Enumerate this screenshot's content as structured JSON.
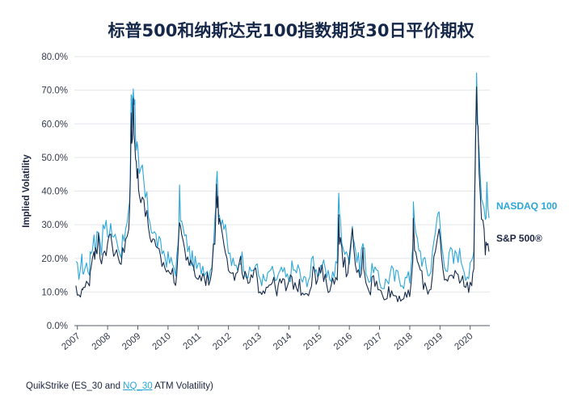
{
  "title": "标普500和纳斯达克100指数期货30日平价期权",
  "source": {
    "prefix": "QuikStrike (ES_30 and ",
    "highlight": "NQ_30",
    "suffix": " ATM Volatility)"
  },
  "colors": {
    "nasdaq": "#2aa6d9",
    "sp500": "#152a4a",
    "grid": "#e3e6ea",
    "axis": "#555c6a"
  },
  "chart_data": {
    "type": "line",
    "title": "标普500和纳斯达克100指数期货30日平价期权",
    "xlabel": "",
    "ylabel": "Implied Volatility",
    "x_tick_labels": [
      "2007",
      "2008",
      "2009",
      "2010",
      "2011",
      "2012",
      "2013",
      "2014",
      "2015",
      "2016",
      "2017",
      "2018",
      "2019",
      "2020"
    ],
    "y_tick_labels": [
      "0.0%",
      "10.0%",
      "20.0%",
      "30.0%",
      "40.0%",
      "50.0%",
      "60.0%",
      "70.0%",
      "80.0%"
    ],
    "xlim": [
      2006.9,
      2020.65
    ],
    "ylim": [
      0,
      80
    ],
    "grid": true,
    "legend": "right, inline labels at series ends",
    "series": [
      {
        "name": "NASDAQ 100",
        "color": "#2aa6d9",
        "points": [
          [
            2006.95,
            17
          ],
          [
            2007.05,
            16
          ],
          [
            2007.15,
            19
          ],
          [
            2007.2,
            16
          ],
          [
            2007.3,
            18
          ],
          [
            2007.4,
            17
          ],
          [
            2007.45,
            22
          ],
          [
            2007.55,
            27
          ],
          [
            2007.6,
            24
          ],
          [
            2007.7,
            29
          ],
          [
            2007.8,
            24
          ],
          [
            2007.9,
            31
          ],
          [
            2008.0,
            27
          ],
          [
            2008.1,
            30
          ],
          [
            2008.2,
            25
          ],
          [
            2008.3,
            28
          ],
          [
            2008.4,
            22
          ],
          [
            2008.5,
            24
          ],
          [
            2008.6,
            28
          ],
          [
            2008.7,
            32
          ],
          [
            2008.75,
            45
          ],
          [
            2008.78,
            70
          ],
          [
            2008.82,
            60
          ],
          [
            2008.85,
            74
          ],
          [
            2008.9,
            65
          ],
          [
            2008.95,
            55
          ],
          [
            2009.0,
            50
          ],
          [
            2009.05,
            42
          ],
          [
            2009.15,
            46
          ],
          [
            2009.25,
            38
          ],
          [
            2009.35,
            34
          ],
          [
            2009.45,
            30
          ],
          [
            2009.55,
            27
          ],
          [
            2009.65,
            25
          ],
          [
            2009.75,
            23
          ],
          [
            2009.85,
            22
          ],
          [
            2009.95,
            20
          ],
          [
            2010.05,
            19
          ],
          [
            2010.15,
            18
          ],
          [
            2010.25,
            17
          ],
          [
            2010.33,
            22
          ],
          [
            2010.38,
            38
          ],
          [
            2010.45,
            30
          ],
          [
            2010.55,
            26
          ],
          [
            2010.65,
            24
          ],
          [
            2010.75,
            20
          ],
          [
            2010.85,
            19
          ],
          [
            2010.95,
            17
          ],
          [
            2011.05,
            17
          ],
          [
            2011.15,
            18
          ],
          [
            2011.25,
            17
          ],
          [
            2011.35,
            16
          ],
          [
            2011.45,
            19
          ],
          [
            2011.55,
            30
          ],
          [
            2011.6,
            46
          ],
          [
            2011.65,
            38
          ],
          [
            2011.7,
            34
          ],
          [
            2011.8,
            32
          ],
          [
            2011.9,
            27
          ],
          [
            2012.0,
            22
          ],
          [
            2012.1,
            19
          ],
          [
            2012.2,
            17
          ],
          [
            2012.3,
            18
          ],
          [
            2012.4,
            21
          ],
          [
            2012.5,
            19
          ],
          [
            2012.6,
            16
          ],
          [
            2012.7,
            15
          ],
          [
            2012.8,
            17
          ],
          [
            2012.9,
            18
          ],
          [
            2013.0,
            15
          ],
          [
            2013.1,
            14
          ],
          [
            2013.2,
            13
          ],
          [
            2013.3,
            14
          ],
          [
            2013.4,
            17
          ],
          [
            2013.5,
            14
          ],
          [
            2013.6,
            14
          ],
          [
            2013.7,
            15
          ],
          [
            2013.8,
            16
          ],
          [
            2013.9,
            14
          ],
          [
            2014.0,
            14
          ],
          [
            2014.1,
            17
          ],
          [
            2014.2,
            16
          ],
          [
            2014.3,
            17
          ],
          [
            2014.4,
            14
          ],
          [
            2014.5,
            13
          ],
          [
            2014.6,
            14
          ],
          [
            2014.7,
            15
          ],
          [
            2014.8,
            20
          ],
          [
            2014.9,
            16
          ],
          [
            2015.0,
            17
          ],
          [
            2015.1,
            19
          ],
          [
            2015.2,
            15
          ],
          [
            2015.3,
            14
          ],
          [
            2015.4,
            15
          ],
          [
            2015.5,
            16
          ],
          [
            2015.6,
            20
          ],
          [
            2015.65,
            39
          ],
          [
            2015.7,
            30
          ],
          [
            2015.8,
            24
          ],
          [
            2015.9,
            20
          ],
          [
            2016.0,
            21
          ],
          [
            2016.1,
            30
          ],
          [
            2016.15,
            26
          ],
          [
            2016.25,
            20
          ],
          [
            2016.35,
            18
          ],
          [
            2016.45,
            25
          ],
          [
            2016.5,
            21
          ],
          [
            2016.6,
            15
          ],
          [
            2016.7,
            14
          ],
          [
            2016.8,
            18
          ],
          [
            2016.9,
            15
          ],
          [
            2017.0,
            13
          ],
          [
            2017.1,
            12
          ],
          [
            2017.2,
            13
          ],
          [
            2017.3,
            14
          ],
          [
            2017.4,
            16
          ],
          [
            2017.5,
            14
          ],
          [
            2017.6,
            15
          ],
          [
            2017.7,
            14
          ],
          [
            2017.8,
            13
          ],
          [
            2017.9,
            14
          ],
          [
            2018.0,
            14
          ],
          [
            2018.1,
            25
          ],
          [
            2018.12,
            34
          ],
          [
            2018.2,
            26
          ],
          [
            2018.3,
            24
          ],
          [
            2018.4,
            20
          ],
          [
            2018.5,
            18
          ],
          [
            2018.6,
            16
          ],
          [
            2018.7,
            16
          ],
          [
            2018.8,
            28
          ],
          [
            2018.9,
            30
          ],
          [
            2018.97,
            34
          ],
          [
            2019.05,
            24
          ],
          [
            2019.15,
            20
          ],
          [
            2019.25,
            17
          ],
          [
            2019.35,
            22
          ],
          [
            2019.45,
            19
          ],
          [
            2019.55,
            22
          ],
          [
            2019.65,
            21
          ],
          [
            2019.75,
            19
          ],
          [
            2019.85,
            16
          ],
          [
            2019.95,
            15
          ],
          [
            2020.05,
            18
          ],
          [
            2020.12,
            22
          ],
          [
            2020.17,
            55
          ],
          [
            2020.21,
            76
          ],
          [
            2020.26,
            60
          ],
          [
            2020.33,
            45
          ],
          [
            2020.42,
            36
          ],
          [
            2020.5,
            32
          ],
          [
            2020.55,
            39
          ],
          [
            2020.62,
            32
          ]
        ]
      },
      {
        "name": "S&P 500®",
        "color": "#152a4a",
        "points": [
          [
            2006.95,
            10
          ],
          [
            2007.05,
            9.5
          ],
          [
            2007.15,
            11
          ],
          [
            2007.2,
            10
          ],
          [
            2007.3,
            12
          ],
          [
            2007.4,
            14
          ],
          [
            2007.45,
            18
          ],
          [
            2007.55,
            24
          ],
          [
            2007.6,
            21
          ],
          [
            2007.7,
            25
          ],
          [
            2007.8,
            21
          ],
          [
            2007.9,
            24
          ],
          [
            2008.0,
            23
          ],
          [
            2008.1,
            26
          ],
          [
            2008.2,
            21
          ],
          [
            2008.3,
            24
          ],
          [
            2008.4,
            19
          ],
          [
            2008.5,
            21
          ],
          [
            2008.6,
            24
          ],
          [
            2008.7,
            28
          ],
          [
            2008.75,
            40
          ],
          [
            2008.78,
            62
          ],
          [
            2008.82,
            55
          ],
          [
            2008.85,
            65
          ],
          [
            2008.9,
            58
          ],
          [
            2008.95,
            48
          ],
          [
            2009.0,
            44
          ],
          [
            2009.05,
            38
          ],
          [
            2009.15,
            42
          ],
          [
            2009.25,
            33
          ],
          [
            2009.35,
            30
          ],
          [
            2009.45,
            26
          ],
          [
            2009.55,
            23
          ],
          [
            2009.65,
            21
          ],
          [
            2009.75,
            20
          ],
          [
            2009.85,
            18
          ],
          [
            2009.95,
            17
          ],
          [
            2010.05,
            16
          ],
          [
            2010.15,
            15
          ],
          [
            2010.25,
            14
          ],
          [
            2010.33,
            19
          ],
          [
            2010.38,
            34
          ],
          [
            2010.45,
            27
          ],
          [
            2010.55,
            22
          ],
          [
            2010.65,
            21
          ],
          [
            2010.75,
            17
          ],
          [
            2010.85,
            16
          ],
          [
            2010.95,
            15
          ],
          [
            2011.05,
            14
          ],
          [
            2011.15,
            15
          ],
          [
            2011.25,
            14
          ],
          [
            2011.35,
            14
          ],
          [
            2011.45,
            16
          ],
          [
            2011.55,
            27
          ],
          [
            2011.6,
            42
          ],
          [
            2011.65,
            35
          ],
          [
            2011.7,
            31
          ],
          [
            2011.8,
            29
          ],
          [
            2011.9,
            24
          ],
          [
            2012.0,
            19
          ],
          [
            2012.1,
            15
          ],
          [
            2012.2,
            14
          ],
          [
            2012.3,
            15
          ],
          [
            2012.4,
            18
          ],
          [
            2012.5,
            16
          ],
          [
            2012.6,
            13
          ],
          [
            2012.7,
            12
          ],
          [
            2012.8,
            14
          ],
          [
            2012.9,
            15
          ],
          [
            2013.0,
            12
          ],
          [
            2013.1,
            11
          ],
          [
            2013.2,
            11
          ],
          [
            2013.3,
            12
          ],
          [
            2013.4,
            14
          ],
          [
            2013.5,
            12
          ],
          [
            2013.6,
            11
          ],
          [
            2013.7,
            12
          ],
          [
            2013.8,
            13
          ],
          [
            2013.9,
            11
          ],
          [
            2014.0,
            12
          ],
          [
            2014.1,
            14
          ],
          [
            2014.2,
            12
          ],
          [
            2014.3,
            12
          ],
          [
            2014.4,
            11
          ],
          [
            2014.5,
            10
          ],
          [
            2014.6,
            11
          ],
          [
            2014.7,
            11
          ],
          [
            2014.8,
            17
          ],
          [
            2014.9,
            13
          ],
          [
            2015.0,
            15
          ],
          [
            2015.1,
            16
          ],
          [
            2015.2,
            13
          ],
          [
            2015.3,
            12
          ],
          [
            2015.4,
            12
          ],
          [
            2015.5,
            13
          ],
          [
            2015.6,
            16
          ],
          [
            2015.65,
            31
          ],
          [
            2015.7,
            24
          ],
          [
            2015.8,
            19
          ],
          [
            2015.9,
            17
          ],
          [
            2016.0,
            19
          ],
          [
            2016.1,
            26
          ],
          [
            2016.15,
            22
          ],
          [
            2016.25,
            16
          ],
          [
            2016.35,
            14
          ],
          [
            2016.45,
            21
          ],
          [
            2016.5,
            17
          ],
          [
            2016.6,
            12
          ],
          [
            2016.7,
            11
          ],
          [
            2016.8,
            15
          ],
          [
            2016.9,
            12
          ],
          [
            2017.0,
            10
          ],
          [
            2017.1,
            9
          ],
          [
            2017.2,
            10
          ],
          [
            2017.3,
            10
          ],
          [
            2017.4,
            10
          ],
          [
            2017.5,
            9
          ],
          [
            2017.6,
            9
          ],
          [
            2017.7,
            9
          ],
          [
            2017.8,
            8
          ],
          [
            2017.9,
            8
          ],
          [
            2018.0,
            9
          ],
          [
            2018.1,
            20
          ],
          [
            2018.12,
            30
          ],
          [
            2018.2,
            20
          ],
          [
            2018.3,
            18
          ],
          [
            2018.4,
            14
          ],
          [
            2018.5,
            12
          ],
          [
            2018.6,
            11
          ],
          [
            2018.7,
            11
          ],
          [
            2018.8,
            22
          ],
          [
            2018.9,
            24
          ],
          [
            2018.97,
            28
          ],
          [
            2019.05,
            18
          ],
          [
            2019.15,
            14
          ],
          [
            2019.25,
            12
          ],
          [
            2019.35,
            17
          ],
          [
            2019.45,
            13
          ],
          [
            2019.55,
            17
          ],
          [
            2019.65,
            15
          ],
          [
            2019.75,
            13
          ],
          [
            2019.85,
            12
          ],
          [
            2019.95,
            12
          ],
          [
            2020.05,
            13
          ],
          [
            2020.12,
            17
          ],
          [
            2020.17,
            50
          ],
          [
            2020.21,
            75
          ],
          [
            2020.26,
            55
          ],
          [
            2020.33,
            38
          ],
          [
            2020.42,
            28
          ],
          [
            2020.5,
            24
          ],
          [
            2020.55,
            27
          ],
          [
            2020.62,
            22
          ]
        ]
      }
    ]
  }
}
